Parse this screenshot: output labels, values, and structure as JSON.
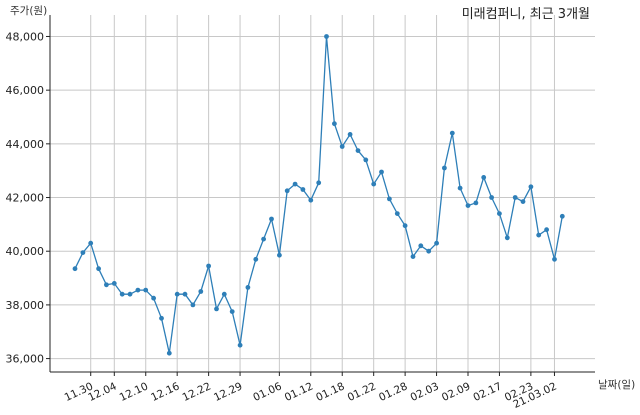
{
  "chart_data": {
    "type": "line",
    "title": "미래컴퍼니, 최근 3개월",
    "xlabel": "날짜(일)",
    "ylabel": "주가(원)",
    "ylim": [
      35500,
      48800
    ],
    "yticks": [
      36000,
      38000,
      40000,
      42000,
      44000,
      46000,
      48000
    ],
    "ytick_labels": [
      "36,000",
      "38,000",
      "40,000",
      "42,000",
      "44,000",
      "46,000",
      "48,000"
    ],
    "xtick_labels": [
      "11.30",
      "12.04",
      "12.10",
      "12.16",
      "12.22",
      "12.29",
      "01.06",
      "01.12",
      "01.18",
      "01.22",
      "01.28",
      "02.03",
      "02.09",
      "02.17",
      "02.23",
      "21.03.02"
    ],
    "xtick_index": [
      2,
      5,
      9,
      13,
      17,
      21,
      26,
      30,
      34,
      38,
      42,
      46,
      50,
      54,
      58,
      61
    ],
    "grid": true,
    "color": "#2e7fb8",
    "series": [
      {
        "values": [
          39350,
          39950,
          40300,
          39350,
          38750,
          38800,
          38400,
          38400,
          38550,
          38550,
          38250,
          37500,
          36200,
          38400,
          38400,
          38000,
          38500,
          39450,
          37850,
          38400,
          37750,
          36500,
          38650,
          39700,
          40450,
          41200,
          39850,
          42250,
          42500,
          42300,
          41900,
          42550,
          48000,
          44750,
          43900,
          44350,
          43750,
          43400,
          42500,
          42950,
          41950,
          41400,
          40950,
          39800,
          40200,
          40000,
          40300,
          43100,
          44400,
          42350,
          41700,
          41800,
          42750,
          42000,
          41400,
          40500,
          42000,
          41850,
          42400,
          40600,
          40800,
          39700,
          41300
        ]
      }
    ]
  }
}
